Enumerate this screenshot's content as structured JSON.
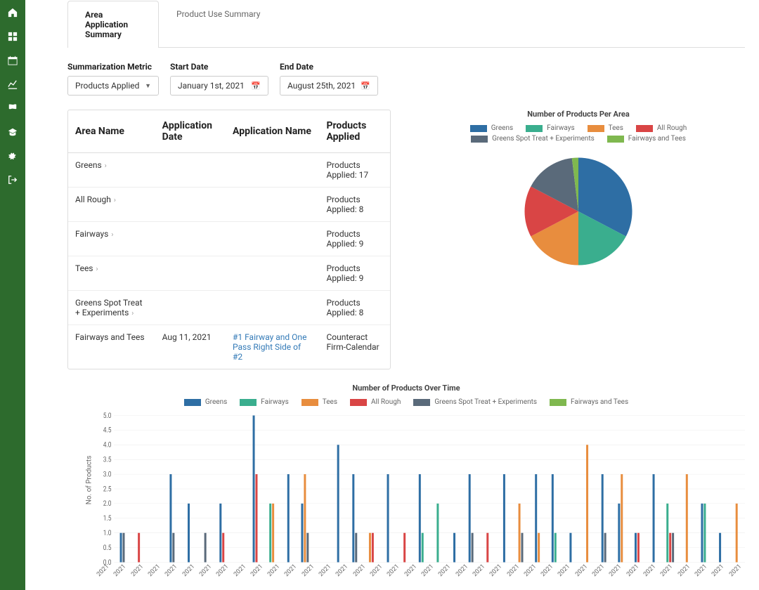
{
  "sidebar": {
    "items": [
      {
        "name": "home-icon"
      },
      {
        "name": "grid-icon"
      },
      {
        "name": "calendar-icon"
      },
      {
        "name": "chart-icon"
      },
      {
        "name": "flag-icon"
      },
      {
        "name": "graduation-icon"
      },
      {
        "name": "gear-icon"
      },
      {
        "name": "logout-icon"
      }
    ]
  },
  "tabs": {
    "active": "Area Application Summary",
    "inactive": "Product Use Summary"
  },
  "filters": {
    "metric_label": "Summarization Metric",
    "metric_value": "Products Applied",
    "start_label": "Start Date",
    "start_value": "January 1st, 2021",
    "end_label": "End Date",
    "end_value": "August 25th, 2021"
  },
  "table": {
    "headers": [
      "Area Name",
      "Application Date",
      "Application Name",
      "Products Applied"
    ],
    "rows": [
      {
        "area": "Greens",
        "date": "",
        "app": "",
        "prod": "Products Applied: 17",
        "expand": true
      },
      {
        "area": "All Rough",
        "date": "",
        "app": "",
        "prod": "Products Applied: 8",
        "expand": true
      },
      {
        "area": "Fairways",
        "date": "",
        "app": "",
        "prod": "Products Applied: 9",
        "expand": true
      },
      {
        "area": "Tees",
        "date": "",
        "app": "",
        "prod": "Products Applied: 9",
        "expand": true
      },
      {
        "area": "Greens Spot Treat + Experiments",
        "date": "",
        "app": "",
        "prod": "Products Applied: 8",
        "expand": true
      },
      {
        "area": "Fairways and Tees",
        "date": "Aug 11, 2021",
        "app": "#1 Fairway and One Pass Right Side of #2",
        "prod": "Counteract Firm-Calendar",
        "expand": false,
        "link": true
      }
    ]
  },
  "pie": {
    "title": "Number of Products Per Area",
    "series": [
      {
        "label": "Greens",
        "value": 17,
        "color": "#2e6ea4"
      },
      {
        "label": "Fairways",
        "value": 9,
        "color": "#3aae8e"
      },
      {
        "label": "Tees",
        "value": 9,
        "color": "#e88d3e"
      },
      {
        "label": "All Rough",
        "value": 8,
        "color": "#d94545"
      },
      {
        "label": "Greens Spot Treat + Experiments",
        "value": 8,
        "color": "#5a6a7a"
      },
      {
        "label": "Fairways and Tees",
        "value": 1,
        "color": "#7fb84f"
      }
    ]
  },
  "bar": {
    "title": "Number of Products Over Time",
    "y_label": "No. of Products",
    "y_max": 5.0,
    "y_ticks": [
      0.0,
      0.5,
      1.0,
      1.5,
      2.0,
      2.5,
      3.0,
      3.5,
      4.0,
      4.5,
      5.0
    ],
    "grid_color": "#eeeeee",
    "axis_color": "#cccccc",
    "x_label_text": "2021",
    "x_count": 38,
    "series": [
      {
        "label": "Greens",
        "color": "#2e6ea4"
      },
      {
        "label": "Fairways",
        "color": "#3aae8e"
      },
      {
        "label": "Tees",
        "color": "#e88d3e"
      },
      {
        "label": "All Rough",
        "color": "#d94545"
      },
      {
        "label": "Greens Spot Treat + Experiments",
        "color": "#5a6a7a"
      },
      {
        "label": "Fairways and Tees",
        "color": "#7fb84f"
      }
    ],
    "points": [
      {
        "x": 0,
        "s": 0,
        "v": 1
      },
      {
        "x": 0,
        "s": 4,
        "v": 1
      },
      {
        "x": 1,
        "s": 3,
        "v": 1
      },
      {
        "x": 3,
        "s": 0,
        "v": 3
      },
      {
        "x": 3,
        "s": 4,
        "v": 1
      },
      {
        "x": 4,
        "s": 0,
        "v": 2
      },
      {
        "x": 5,
        "s": 4,
        "v": 1
      },
      {
        "x": 6,
        "s": 0,
        "v": 2
      },
      {
        "x": 6,
        "s": 3,
        "v": 1
      },
      {
        "x": 8,
        "s": 0,
        "v": 5
      },
      {
        "x": 8,
        "s": 3,
        "v": 3
      },
      {
        "x": 9,
        "s": 1,
        "v": 2
      },
      {
        "x": 9,
        "s": 2,
        "v": 2
      },
      {
        "x": 10,
        "s": 0,
        "v": 3
      },
      {
        "x": 11,
        "s": 0,
        "v": 2
      },
      {
        "x": 11,
        "s": 2,
        "v": 3
      },
      {
        "x": 11,
        "s": 4,
        "v": 1
      },
      {
        "x": 13,
        "s": 0,
        "v": 4
      },
      {
        "x": 14,
        "s": 0,
        "v": 3
      },
      {
        "x": 14,
        "s": 4,
        "v": 1
      },
      {
        "x": 15,
        "s": 2,
        "v": 1
      },
      {
        "x": 15,
        "s": 3,
        "v": 1
      },
      {
        "x": 16,
        "s": 0,
        "v": 3
      },
      {
        "x": 17,
        "s": 3,
        "v": 1
      },
      {
        "x": 18,
        "s": 0,
        "v": 3
      },
      {
        "x": 18,
        "s": 1,
        "v": 1
      },
      {
        "x": 19,
        "s": 1,
        "v": 2
      },
      {
        "x": 20,
        "s": 0,
        "v": 1
      },
      {
        "x": 21,
        "s": 0,
        "v": 3
      },
      {
        "x": 21,
        "s": 4,
        "v": 1
      },
      {
        "x": 22,
        "s": 3,
        "v": 1
      },
      {
        "x": 23,
        "s": 0,
        "v": 3
      },
      {
        "x": 24,
        "s": 2,
        "v": 2
      },
      {
        "x": 24,
        "s": 4,
        "v": 1
      },
      {
        "x": 25,
        "s": 0,
        "v": 3
      },
      {
        "x": 25,
        "s": 2,
        "v": 1
      },
      {
        "x": 26,
        "s": 0,
        "v": 3
      },
      {
        "x": 26,
        "s": 1,
        "v": 1
      },
      {
        "x": 27,
        "s": 0,
        "v": 1
      },
      {
        "x": 28,
        "s": 2,
        "v": 4
      },
      {
        "x": 29,
        "s": 0,
        "v": 3
      },
      {
        "x": 29,
        "s": 4,
        "v": 1
      },
      {
        "x": 30,
        "s": 0,
        "v": 2
      },
      {
        "x": 30,
        "s": 2,
        "v": 3
      },
      {
        "x": 31,
        "s": 0,
        "v": 1
      },
      {
        "x": 31,
        "s": 3,
        "v": 1
      },
      {
        "x": 32,
        "s": 0,
        "v": 3
      },
      {
        "x": 33,
        "s": 1,
        "v": 2
      },
      {
        "x": 33,
        "s": 3,
        "v": 1
      },
      {
        "x": 33,
        "s": 4,
        "v": 1
      },
      {
        "x": 34,
        "s": 2,
        "v": 3
      },
      {
        "x": 35,
        "s": 0,
        "v": 2
      },
      {
        "x": 35,
        "s": 1,
        "v": 2
      },
      {
        "x": 36,
        "s": 0,
        "v": 1
      },
      {
        "x": 37,
        "s": 2,
        "v": 2
      }
    ]
  }
}
